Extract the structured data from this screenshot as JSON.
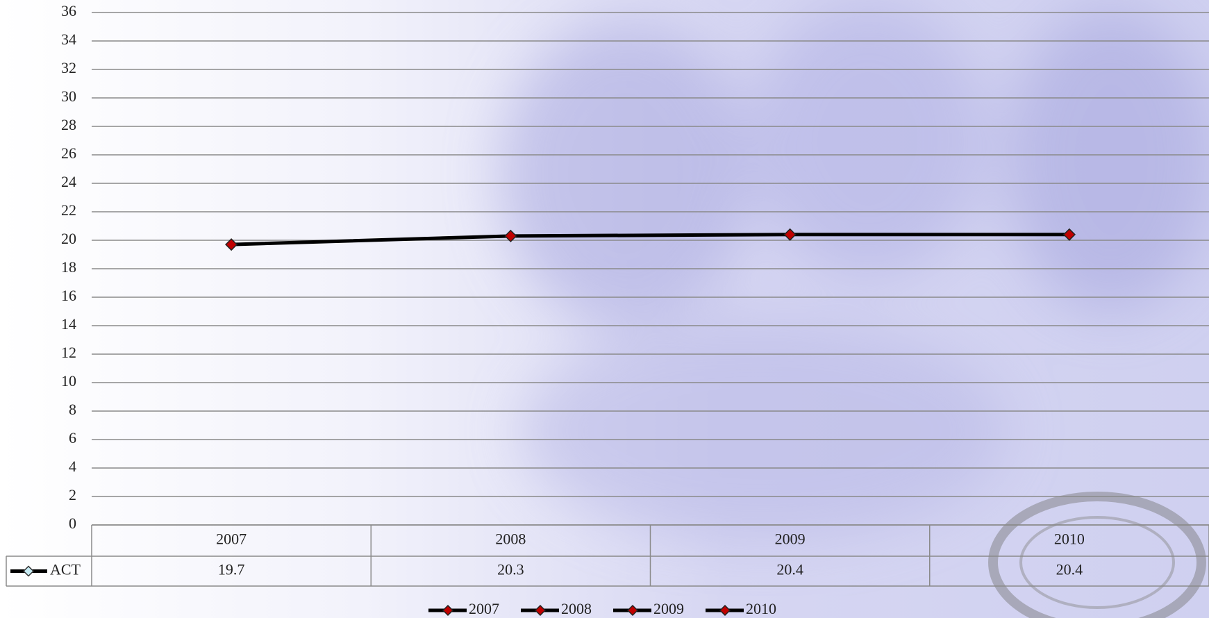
{
  "chart_data": {
    "type": "line",
    "categories": [
      "2007",
      "2008",
      "2009",
      "2010"
    ],
    "series": [
      {
        "name": "ACT",
        "color": "#000000",
        "marker_color": "#c00000",
        "values": [
          19.7,
          20.3,
          20.4,
          20.4
        ]
      }
    ],
    "ylim": [
      0,
      36
    ],
    "yticks": [
      0,
      2,
      4,
      6,
      8,
      10,
      12,
      14,
      16,
      18,
      20,
      22,
      24,
      26,
      28,
      30,
      32,
      34,
      36
    ],
    "grid": true,
    "data_table": true
  }
}
